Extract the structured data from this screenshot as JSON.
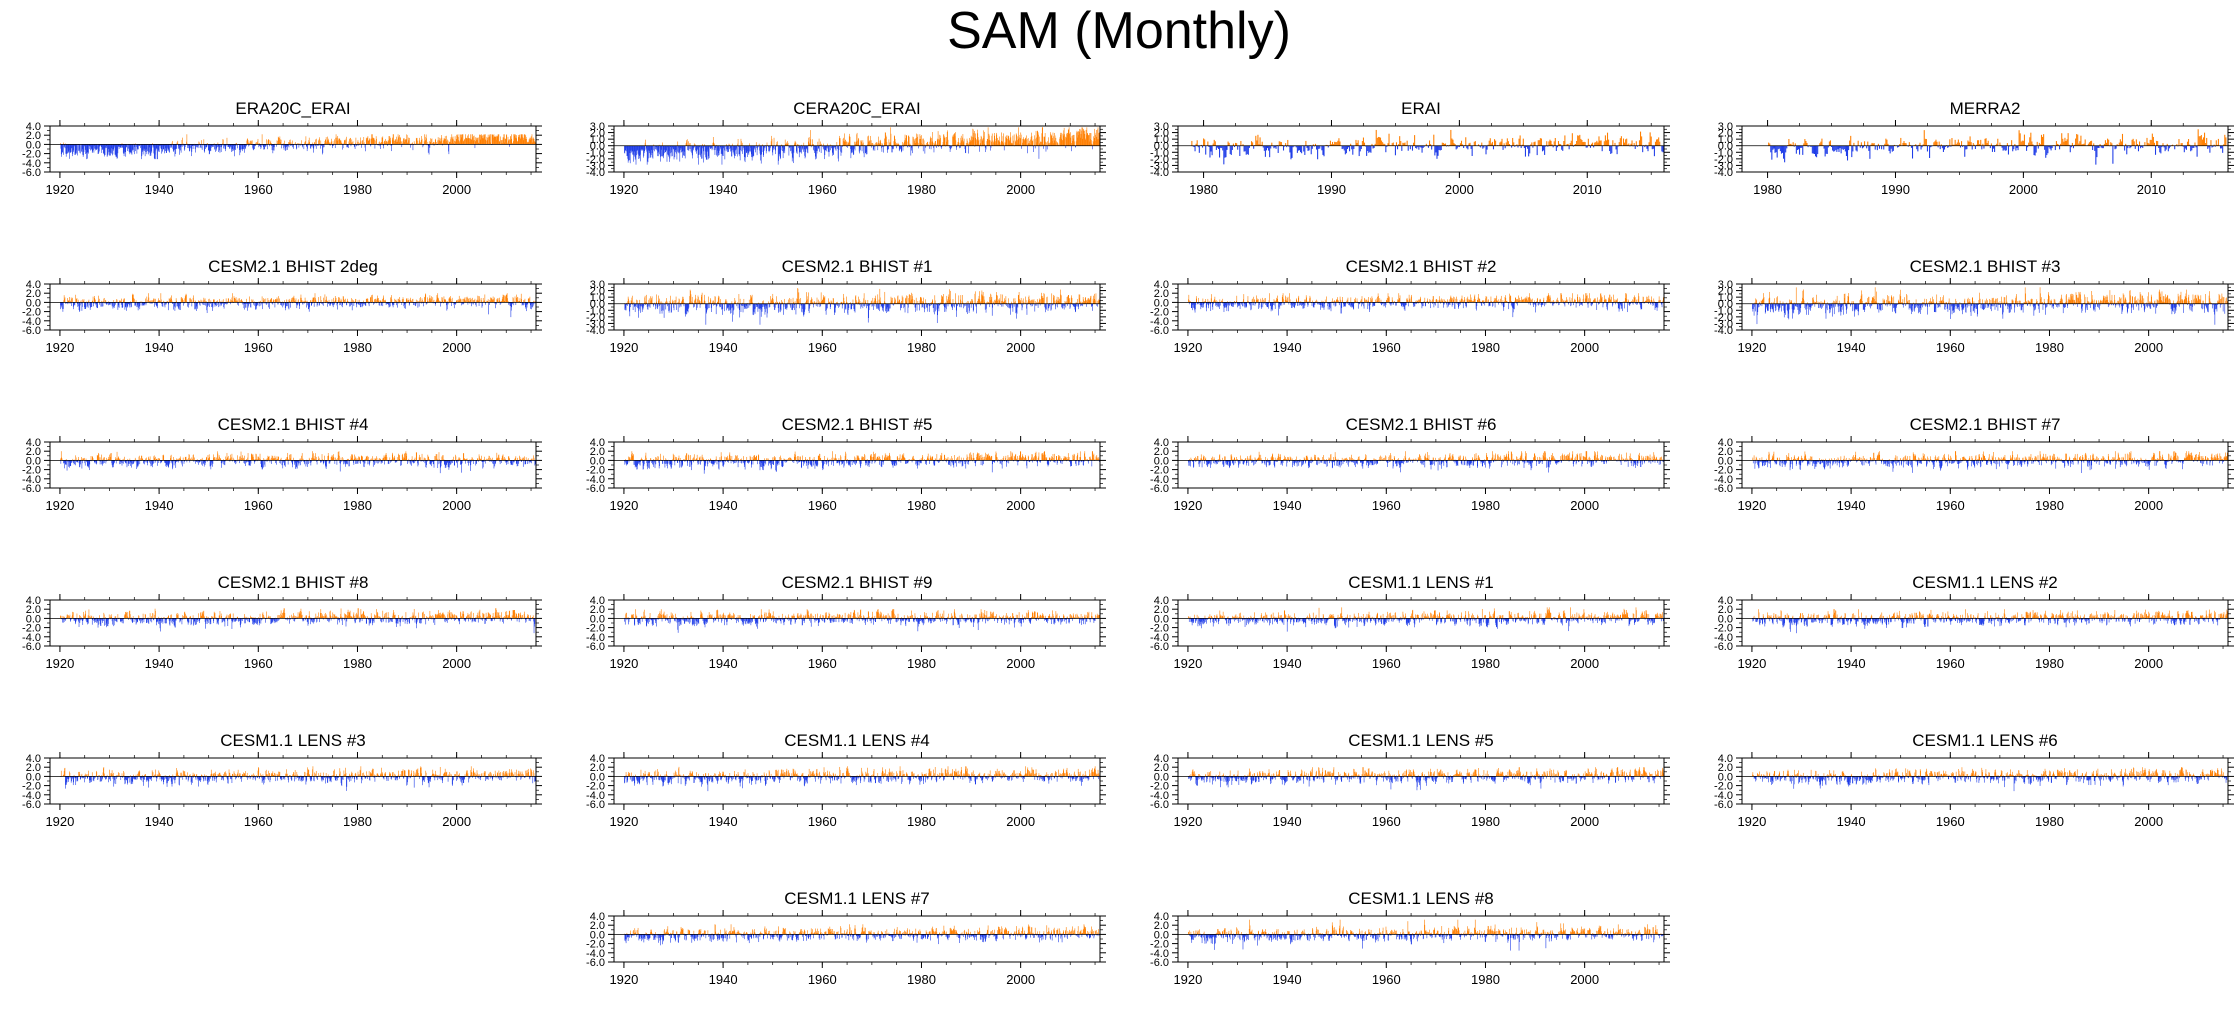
{
  "title": "SAM (Monthly)",
  "colors": {
    "positive": "#ff7f00",
    "negative": "#1f3de8",
    "axis": "#000000"
  },
  "chart_data": [
    {
      "type": "bar",
      "title": "ERA20C_ERAI",
      "x_range": [
        1918,
        2016
      ],
      "xticks": [
        1920,
        1940,
        1960,
        1980,
        2000
      ],
      "ylim": [
        -6,
        4
      ],
      "yticks": [
        "4.0",
        "2.0",
        "0.0",
        "-2.0",
        "-4.0",
        "-6.0"
      ],
      "series": {
        "start": 1920,
        "end": 2015,
        "amp_pos": 1.4,
        "amp_neg": 2.0,
        "trend": 1.3,
        "peak": 2.2,
        "seed": 11
      }
    },
    {
      "type": "bar",
      "title": "CERA20C_ERAI",
      "x_range": [
        1918,
        2016
      ],
      "xticks": [
        1920,
        1940,
        1960,
        1980,
        2000
      ],
      "ylim": [
        -4,
        3
      ],
      "yticks": [
        "3.0",
        "2.0",
        "1.0",
        "0.0",
        "-1.0",
        "-2.0",
        "-3.0",
        "-4.0"
      ],
      "series": {
        "start": 1920,
        "end": 2015,
        "amp_pos": 1.6,
        "amp_neg": 1.8,
        "trend": 1.2,
        "peak": 2.8,
        "seed": 23
      }
    },
    {
      "type": "bar",
      "title": "ERAI",
      "x_range": [
        1978,
        2016
      ],
      "xticks": [
        1980,
        1990,
        2000,
        2010
      ],
      "ylim": [
        -4,
        3
      ],
      "yticks": [
        "3.0",
        "2.0",
        "1.0",
        "0.0",
        "-1.0",
        "-2.0",
        "-3.0",
        "-4.0"
      ],
      "series": {
        "start": 1979,
        "end": 2015,
        "amp_pos": 1.5,
        "amp_neg": 1.8,
        "trend": 0.2,
        "peak": 2.4,
        "seed": 37
      }
    },
    {
      "type": "bar",
      "title": "MERRA2",
      "x_range": [
        1978,
        2016
      ],
      "xticks": [
        1980,
        1990,
        2000,
        2010
      ],
      "ylim": [
        -4,
        3
      ],
      "yticks": [
        "3.0",
        "2.0",
        "1.0",
        "0.0",
        "-1.0",
        "-2.0",
        "-3.0",
        "-4.0"
      ],
      "series": {
        "start": 1980,
        "end": 2015,
        "amp_pos": 1.5,
        "amp_neg": 1.8,
        "trend": 0.2,
        "peak": 2.5,
        "seed": 41
      }
    },
    {
      "type": "bar",
      "title": "CESM2.1 BHIST 2deg",
      "x_range": [
        1918,
        2016
      ],
      "xticks": [
        1920,
        1940,
        1960,
        1980,
        2000
      ],
      "ylim": [
        -6,
        4
      ],
      "yticks": [
        "4.0",
        "2.0",
        "0.0",
        "-2.0",
        "-4.0",
        "-6.0"
      ],
      "series": {
        "start": 1920,
        "end": 2015,
        "amp_pos": 1.5,
        "amp_neg": 2.0,
        "trend": 0.2,
        "peak": 2.0,
        "seed": 53
      }
    },
    {
      "type": "bar",
      "title": "CESM2.1 BHIST #1",
      "x_range": [
        1918,
        2016
      ],
      "xticks": [
        1920,
        1940,
        1960,
        1980,
        2000
      ],
      "ylim": [
        -4,
        3
      ],
      "yticks": [
        "3.0",
        "2.0",
        "1.0",
        "0.0",
        "-1.0",
        "-2.0",
        "-3.0",
        "-4.0"
      ],
      "series": {
        "start": 1920,
        "end": 2015,
        "amp_pos": 1.7,
        "amp_neg": 2.0,
        "trend": 0.2,
        "peak": 2.5,
        "seed": 67
      }
    },
    {
      "type": "bar",
      "title": "CESM2.1 BHIST #2",
      "x_range": [
        1918,
        2016
      ],
      "xticks": [
        1920,
        1940,
        1960,
        1980,
        2000
      ],
      "ylim": [
        -6,
        4
      ],
      "yticks": [
        "4.0",
        "2.0",
        "0.0",
        "-2.0",
        "-4.0",
        "-6.0"
      ],
      "series": {
        "start": 1920,
        "end": 2015,
        "amp_pos": 1.5,
        "amp_neg": 2.0,
        "trend": 0.2,
        "peak": 2.0,
        "seed": 71
      }
    },
    {
      "type": "bar",
      "title": "CESM2.1 BHIST #3",
      "x_range": [
        1918,
        2016
      ],
      "xticks": [
        1920,
        1940,
        1960,
        1980,
        2000
      ],
      "ylim": [
        -4,
        3
      ],
      "yticks": [
        "3.0",
        "2.0",
        "1.0",
        "0.0",
        "-1.0",
        "-2.0",
        "-3.0",
        "-4.0"
      ],
      "series": {
        "start": 1920,
        "end": 2015,
        "amp_pos": 1.7,
        "amp_neg": 2.0,
        "trend": 0.3,
        "peak": 2.5,
        "seed": 83
      }
    },
    {
      "type": "bar",
      "title": "CESM2.1 BHIST #4",
      "x_range": [
        1918,
        2016
      ],
      "xticks": [
        1920,
        1940,
        1960,
        1980,
        2000
      ],
      "ylim": [
        -6,
        4
      ],
      "yticks": [
        "4.0",
        "2.0",
        "0.0",
        "-2.0",
        "-4.0",
        "-6.0"
      ],
      "series": {
        "start": 1920,
        "end": 2015,
        "amp_pos": 1.5,
        "amp_neg": 2.0,
        "trend": 0.2,
        "peak": 2.0,
        "seed": 97
      }
    },
    {
      "type": "bar",
      "title": "CESM2.1 BHIST #5",
      "x_range": [
        1918,
        2016
      ],
      "xticks": [
        1920,
        1940,
        1960,
        1980,
        2000
      ],
      "ylim": [
        -6,
        4
      ],
      "yticks": [
        "4.0",
        "2.0",
        "0.0",
        "-2.0",
        "-4.0",
        "-6.0"
      ],
      "series": {
        "start": 1920,
        "end": 2015,
        "amp_pos": 1.5,
        "amp_neg": 2.2,
        "trend": 0.2,
        "peak": 2.0,
        "seed": 101
      }
    },
    {
      "type": "bar",
      "title": "CESM2.1 BHIST #6",
      "x_range": [
        1918,
        2016
      ],
      "xticks": [
        1920,
        1940,
        1960,
        1980,
        2000
      ],
      "ylim": [
        -6,
        4
      ],
      "yticks": [
        "4.0",
        "2.0",
        "0.0",
        "-2.0",
        "-4.0",
        "-6.0"
      ],
      "series": {
        "start": 1920,
        "end": 2015,
        "amp_pos": 1.5,
        "amp_neg": 2.2,
        "trend": 0.2,
        "peak": 2.0,
        "seed": 113
      }
    },
    {
      "type": "bar",
      "title": "CESM2.1 BHIST #7",
      "x_range": [
        1918,
        2016
      ],
      "xticks": [
        1920,
        1940,
        1960,
        1980,
        2000
      ],
      "ylim": [
        -6,
        4
      ],
      "yticks": [
        "4.0",
        "2.0",
        "0.0",
        "-2.0",
        "-4.0",
        "-6.0"
      ],
      "series": {
        "start": 1920,
        "end": 2015,
        "amp_pos": 1.5,
        "amp_neg": 2.0,
        "trend": 0.2,
        "peak": 2.0,
        "seed": 127
      }
    },
    {
      "type": "bar",
      "title": "CESM2.1 BHIST #8",
      "x_range": [
        1918,
        2016
      ],
      "xticks": [
        1920,
        1940,
        1960,
        1980,
        2000
      ],
      "ylim": [
        -6,
        4
      ],
      "yticks": [
        "4.0",
        "2.0",
        "0.0",
        "-2.0",
        "-4.0",
        "-6.0"
      ],
      "series": {
        "start": 1920,
        "end": 2015,
        "amp_pos": 1.5,
        "amp_neg": 2.0,
        "trend": 0.3,
        "peak": 2.2,
        "seed": 131
      }
    },
    {
      "type": "bar",
      "title": "CESM2.1 BHIST #9",
      "x_range": [
        1918,
        2016
      ],
      "xticks": [
        1920,
        1940,
        1960,
        1980,
        2000
      ],
      "ylim": [
        -6,
        4
      ],
      "yticks": [
        "4.0",
        "2.0",
        "0.0",
        "-2.0",
        "-4.0",
        "-6.0"
      ],
      "series": {
        "start": 1920,
        "end": 2015,
        "amp_pos": 1.5,
        "amp_neg": 2.0,
        "trend": 0.2,
        "peak": 2.0,
        "seed": 139
      }
    },
    {
      "type": "bar",
      "title": "CESM1.1 LENS #1",
      "x_range": [
        1918,
        2016
      ],
      "xticks": [
        1920,
        1940,
        1960,
        1980,
        2000
      ],
      "ylim": [
        -6,
        4
      ],
      "yticks": [
        "4.0",
        "2.0",
        "0.0",
        "-2.0",
        "-4.0",
        "-6.0"
      ],
      "series": {
        "start": 1920,
        "end": 2015,
        "amp_pos": 1.5,
        "amp_neg": 2.0,
        "trend": 0.2,
        "peak": 2.4,
        "seed": 149
      }
    },
    {
      "type": "bar",
      "title": "CESM1.1 LENS #2",
      "x_range": [
        1918,
        2016
      ],
      "xticks": [
        1920,
        1940,
        1960,
        1980,
        2000
      ],
      "ylim": [
        -6,
        4
      ],
      "yticks": [
        "4.0",
        "2.0",
        "0.0",
        "-2.0",
        "-4.0",
        "-6.0"
      ],
      "series": {
        "start": 1920,
        "end": 2015,
        "amp_pos": 1.5,
        "amp_neg": 2.2,
        "trend": 0.2,
        "peak": 2.0,
        "seed": 157
      }
    },
    {
      "type": "bar",
      "title": "CESM1.1 LENS #3",
      "x_range": [
        1918,
        2016
      ],
      "xticks": [
        1920,
        1940,
        1960,
        1980,
        2000
      ],
      "ylim": [
        -6,
        4
      ],
      "yticks": [
        "4.0",
        "2.0",
        "0.0",
        "-2.0",
        "-4.0",
        "-6.0"
      ],
      "series": {
        "start": 1920,
        "end": 2015,
        "amp_pos": 1.5,
        "amp_neg": 2.0,
        "trend": 0.2,
        "peak": 2.2,
        "seed": 163
      }
    },
    {
      "type": "bar",
      "title": "CESM1.1 LENS #4",
      "x_range": [
        1918,
        2016
      ],
      "xticks": [
        1920,
        1940,
        1960,
        1980,
        2000
      ],
      "ylim": [
        -6,
        4
      ],
      "yticks": [
        "4.0",
        "2.0",
        "0.0",
        "-2.0",
        "-4.0",
        "-6.0"
      ],
      "series": {
        "start": 1920,
        "end": 2015,
        "amp_pos": 1.5,
        "amp_neg": 2.0,
        "trend": 0.2,
        "peak": 2.2,
        "seed": 173
      }
    },
    {
      "type": "bar",
      "title": "CESM1.1 LENS #5",
      "x_range": [
        1918,
        2016
      ],
      "xticks": [
        1920,
        1940,
        1960,
        1980,
        2000
      ],
      "ylim": [
        -6,
        4
      ],
      "yticks": [
        "4.0",
        "2.0",
        "0.0",
        "-2.0",
        "-4.0",
        "-6.0"
      ],
      "series": {
        "start": 1920,
        "end": 2015,
        "amp_pos": 1.5,
        "amp_neg": 2.0,
        "trend": 0.2,
        "peak": 2.0,
        "seed": 179
      }
    },
    {
      "type": "bar",
      "title": "CESM1.1 LENS #6",
      "x_range": [
        1918,
        2016
      ],
      "xticks": [
        1920,
        1940,
        1960,
        1980,
        2000
      ],
      "ylim": [
        -6,
        4
      ],
      "yticks": [
        "4.0",
        "2.0",
        "0.0",
        "-2.0",
        "-4.0",
        "-6.0"
      ],
      "series": {
        "start": 1920,
        "end": 2015,
        "amp_pos": 1.5,
        "amp_neg": 2.0,
        "trend": 0.2,
        "peak": 2.0,
        "seed": 191
      }
    },
    {
      "type": "bar",
      "title": "CESM1.1 LENS #7",
      "x_range": [
        1918,
        2016
      ],
      "xticks": [
        1920,
        1940,
        1960,
        1980,
        2000
      ],
      "ylim": [
        -6,
        4
      ],
      "yticks": [
        "4.0",
        "2.0",
        "0.0",
        "-2.0",
        "-4.0",
        "-6.0"
      ],
      "series": {
        "start": 1920,
        "end": 2015,
        "amp_pos": 1.5,
        "amp_neg": 2.0,
        "trend": 0.2,
        "peak": 2.2,
        "seed": 197
      }
    },
    {
      "type": "bar",
      "title": "CESM1.1 LENS #8",
      "x_range": [
        1918,
        2016
      ],
      "xticks": [
        1920,
        1940,
        1960,
        1980,
        2000
      ],
      "ylim": [
        -6,
        4
      ],
      "yticks": [
        "4.0",
        "2.0",
        "0.0",
        "-2.0",
        "-4.0",
        "-6.0"
      ],
      "series": {
        "start": 1920,
        "end": 2015,
        "amp_pos": 1.6,
        "amp_neg": 2.2,
        "trend": 0.2,
        "peak": 3.2,
        "seed": 211
      }
    }
  ]
}
